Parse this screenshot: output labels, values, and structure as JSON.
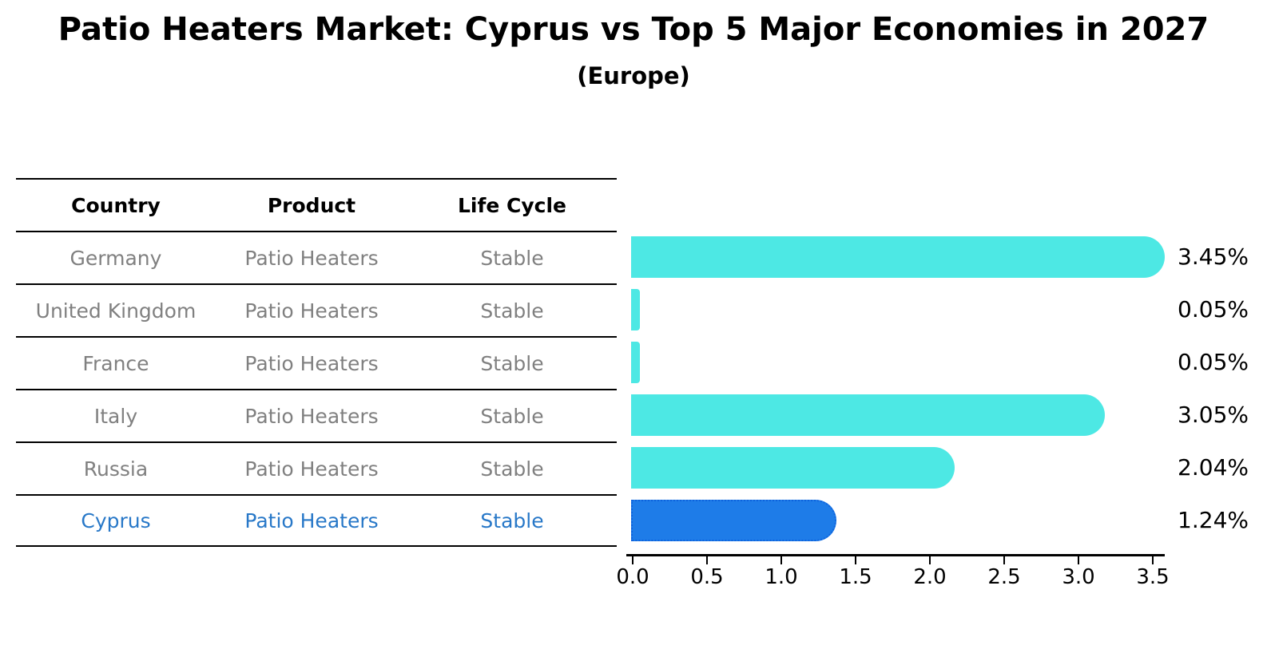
{
  "chart_data": {
    "type": "bar",
    "orientation": "horizontal",
    "title": "Patio Heaters Market: Cyprus vs Top 5 Major Economies in 2027",
    "subtitle": "(Europe)",
    "categories": [
      "Germany",
      "United Kingdom",
      "France",
      "Italy",
      "Russia",
      "Cyprus"
    ],
    "values": [
      3.45,
      0.05,
      0.05,
      3.05,
      2.04,
      1.24
    ],
    "value_labels": [
      "3.45%",
      "0.05%",
      "0.05%",
      "3.05%",
      "2.04%",
      "1.24%"
    ],
    "x_ticks": [
      "0.0",
      "0.5",
      "1.0",
      "1.5",
      "2.0",
      "2.5",
      "3.0",
      "3.5"
    ],
    "xlim": [
      0,
      3.6
    ],
    "grid": "off",
    "legend": "none",
    "highlight_index": 5,
    "colors": {
      "bar": "#4de8e4",
      "highlight_bar": "#1e7ce8",
      "highlight_bar_border": "#0e63dd",
      "value_label": "#000000",
      "axis": "#000000"
    }
  },
  "table": {
    "headers": [
      "Country",
      "Product",
      "Life Cycle"
    ],
    "rows": [
      [
        "Germany",
        "Patio Heaters",
        "Stable"
      ],
      [
        "United Kingdom",
        "Patio Heaters",
        "Stable"
      ],
      [
        "France",
        "Patio Heaters",
        "Stable"
      ],
      [
        "Italy",
        "Patio Heaters",
        "Stable"
      ],
      [
        "Russia",
        "Patio Heaters",
        "Stable"
      ],
      [
        "Cyprus",
        "Patio Heaters",
        "Stable"
      ]
    ],
    "highlight_row_index": 5,
    "colors": {
      "header_text": "#000000",
      "row_text": "#808080",
      "highlight_text": "#2878c8",
      "line": "#000000"
    }
  }
}
